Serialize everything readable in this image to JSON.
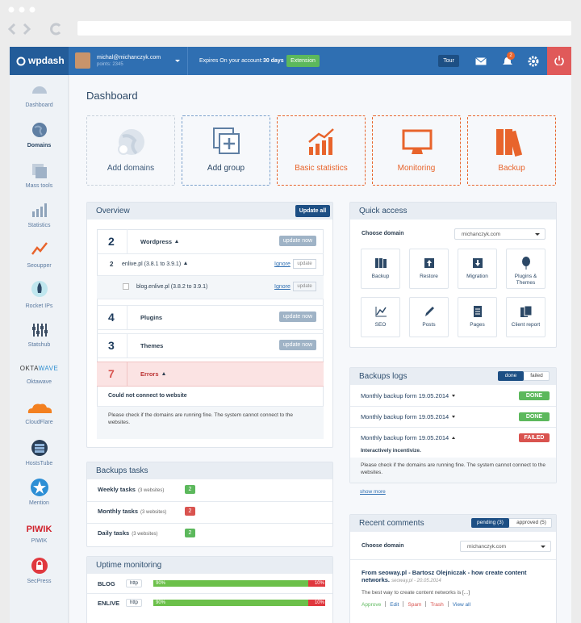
{
  "header": {
    "logo": "wpdash",
    "user_email": "michal@michanczyk.com",
    "points": "points: 2345",
    "expires_label": "Expires On your account:",
    "expires_value": "30 days",
    "extension_button": "Extension",
    "tour_button": "Tour",
    "notification_count": 2
  },
  "sidebar": {
    "items": [
      {
        "label": "Dashboard"
      },
      {
        "label": "Domains"
      },
      {
        "label": "Mass tools"
      },
      {
        "label": "Statistics"
      },
      {
        "label": "Seoupper"
      },
      {
        "label": "Rocket IPs"
      },
      {
        "label": "Statshub"
      },
      {
        "label": "Oktawave",
        "logo_a": "OKTA",
        "logo_b": "WAVE"
      },
      {
        "label": "CloudFlare"
      },
      {
        "label": "HostsTube"
      },
      {
        "label": "Mention"
      },
      {
        "label": "PIWIK",
        "logo": "PIWIK"
      },
      {
        "label": "SecPress"
      }
    ]
  },
  "page_title": "Dashboard",
  "tiles": [
    "Add domains",
    "Add group",
    "Basic statistics",
    "Monitoring",
    "Backup"
  ],
  "overview": {
    "title": "Overview",
    "update_all": "Update all",
    "wordpress": {
      "count": 2,
      "label": "Wordpress",
      "button": "update now",
      "sites": [
        {
          "count": 2,
          "name": "enlive.pl (3.8.1 to 3.9.1)",
          "ignore": "Ignore",
          "update": "update"
        },
        {
          "name": "blog.enlive.pl (3.8.2 to 3.9.1)",
          "ignore": "Ignore",
          "update": "update"
        }
      ]
    },
    "plugins": {
      "count": 4,
      "label": "Plugins",
      "button": "update now"
    },
    "themes": {
      "count": 3,
      "label": "Themes",
      "button": "update now"
    },
    "errors": {
      "count": 7,
      "label": "Errors",
      "message_title": "Could not connect to website",
      "message": "Please check if the domains are running fine. The system cannot connect to the websites."
    }
  },
  "backup_tasks": {
    "title": "Backups tasks",
    "rows": [
      {
        "name": "Weekly tasks",
        "sites": "(3 websites)",
        "count": 2
      },
      {
        "name": "Monthly tasks",
        "sites": "(3 websites)",
        "count": 2
      },
      {
        "name": "Daily tasks",
        "sites": "(3 websites)",
        "count": 2
      }
    ]
  },
  "uptime": {
    "title": "Uptime monitoring",
    "rows": [
      {
        "name": "BLOG",
        "protocol": "http",
        "up": {
          "value": 90,
          "label": "90%"
        },
        "down": {
          "value": 10,
          "label": "10%"
        }
      },
      {
        "name": "ENLIVE",
        "protocol": "http",
        "up": {
          "value": 90,
          "label": "90%"
        },
        "down": {
          "value": 10,
          "label": "10%"
        }
      }
    ]
  },
  "quick_access": {
    "title": "Quick access",
    "choose_label": "Choose domain",
    "domain": "michanczyk.com",
    "items": [
      "Backup",
      "Restore",
      "Migration",
      "Plugins & Themes",
      "SEO",
      "Posts",
      "Pages",
      "Client report"
    ]
  },
  "backup_logs": {
    "title": "Backups logs",
    "tabs": [
      "done",
      "failed"
    ],
    "rows": [
      {
        "name": "Monthly backup form 19.05.2014",
        "status": "DONE"
      },
      {
        "name": "Monthly backup form 19.05.2014",
        "status": "DONE"
      },
      {
        "name": "Monthly backup form 19.05.2014",
        "status": "FAILED"
      }
    ],
    "detail_title": "Interactively incentivize.",
    "detail": "Please check if the domains are running fine. The system cannot connect to the websites.",
    "show_more": "show more"
  },
  "recent_comments": {
    "title": "Recent comments",
    "tabs": [
      "pending (3)",
      "approved (5)"
    ],
    "choose_label": "Choose domain",
    "domain": "michanczyk.com",
    "comment": {
      "title": "From seoway.pl - Bartosz Olejniczak - how create content networks.",
      "meta": "seoway.pl - 20.05.2014",
      "text": "The best way to create content networks is [...]",
      "actions": [
        "Approve",
        "Edit",
        "Spam",
        "Trash",
        "View all"
      ]
    }
  }
}
